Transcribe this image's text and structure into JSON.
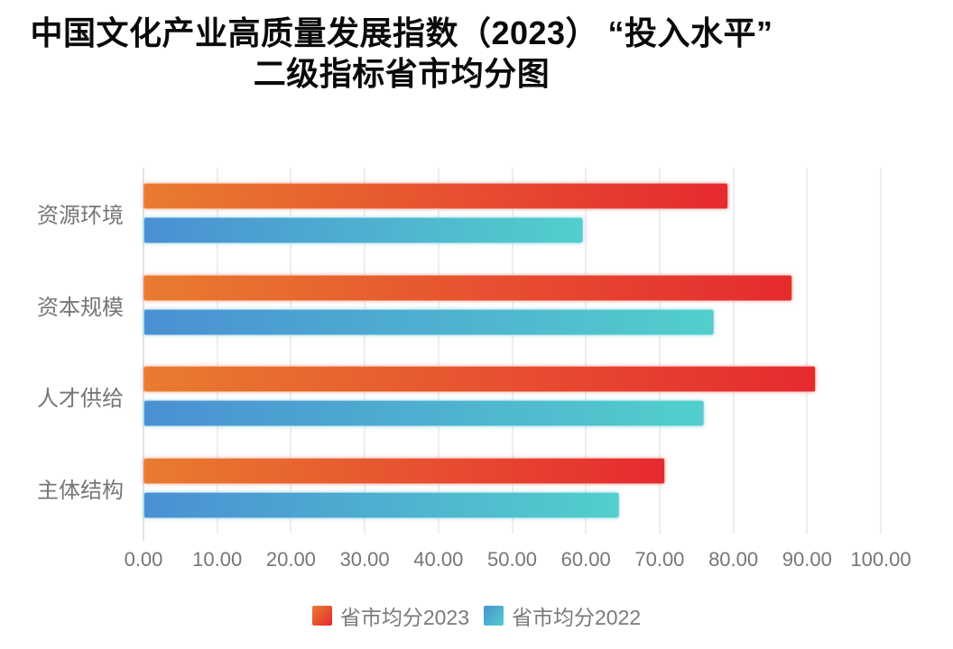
{
  "title": {
    "line1": "中国文化产业高质量发展指数（2023） “投入水平”",
    "line2": "二级指标省市均分图"
  },
  "chart_data": {
    "type": "bar",
    "orientation": "horizontal",
    "title": "中国文化产业高质量发展指数（2023）“投入水平” 二级指标省市均分图",
    "categories": [
      "资源环境",
      "资本规模",
      "人才供给",
      "主体结构"
    ],
    "series": [
      {
        "name": "省市均分2023",
        "values": [
          79.3,
          88.0,
          91.2,
          70.8
        ],
        "gradient_start": "#E87C2F",
        "gradient_end": "#E62A30"
      },
      {
        "name": "省市均分2022",
        "values": [
          59.6,
          77.3,
          76.0,
          64.5
        ],
        "gradient_start": "#4A90D3",
        "gradient_end": "#52CFCC"
      }
    ],
    "xlim": [
      0,
      100
    ],
    "x_ticks": [
      0,
      10,
      20,
      30,
      40,
      50,
      60,
      70,
      80,
      90,
      100
    ],
    "x_tick_labels": [
      "0.00",
      "10.00",
      "20.00",
      "30.00",
      "40.00",
      "50.00",
      "60.00",
      "70.00",
      "80.00",
      "90.00",
      "100.00"
    ],
    "grid": "vertical",
    "legend_position": "bottom"
  },
  "colors": {
    "gridline": "#dcdcdc",
    "axis_line": "#c4c4c4",
    "muted_text": "#767676",
    "title_text": "#0a0a0a"
  }
}
